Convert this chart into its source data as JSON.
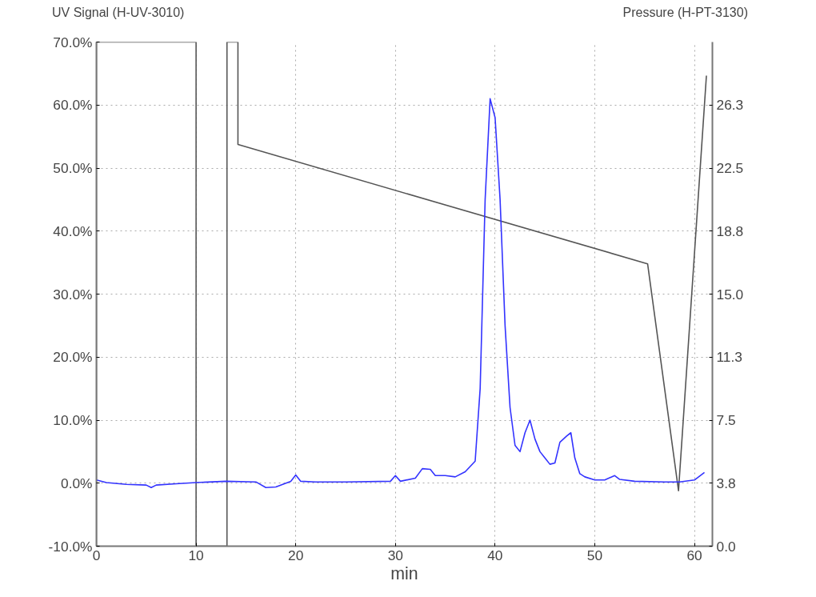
{
  "chart_data": {
    "type": "line",
    "xlabel": "min",
    "ylabel": "UV Signal (H-UV-3010)",
    "y2label": "Pressure (H-PT-3130)",
    "xlim": [
      0,
      61.8
    ],
    "xticks": [
      0,
      10,
      20,
      30,
      40,
      50,
      60
    ],
    "ylim": [
      -10,
      70
    ],
    "yticks": [
      {
        "value": -10,
        "label": "-10.0%"
      },
      {
        "value": 0,
        "label": "0.0%"
      },
      {
        "value": 10,
        "label": "10.0%"
      },
      {
        "value": 20,
        "label": "20.0%"
      },
      {
        "value": 30,
        "label": "30.0%"
      },
      {
        "value": 40,
        "label": "40.0%"
      },
      {
        "value": 50,
        "label": "50.0%"
      },
      {
        "value": 60,
        "label": "60.0%"
      },
      {
        "value": 70,
        "label": "70.0%"
      }
    ],
    "y2lim": [
      0,
      30
    ],
    "y2ticks": [
      {
        "value": 0,
        "label": "0.0"
      },
      {
        "value": 3.75,
        "label": "3.8"
      },
      {
        "value": 7.5,
        "label": "7.5"
      },
      {
        "value": 11.25,
        "label": "11.3"
      },
      {
        "value": 15,
        "label": "15.0"
      },
      {
        "value": 18.75,
        "label": "18.8"
      },
      {
        "value": 22.5,
        "label": "22.5"
      },
      {
        "value": 26.25,
        "label": "26.3"
      }
    ],
    "grid": true,
    "series": [
      {
        "color": "#555555",
        "axis": "y2",
        "x": [
          0,
          0,
          10,
          10,
          13.1,
          13.1,
          14.2,
          14.2,
          55.3,
          58.4,
          61.2
        ],
        "values": [
          0,
          30,
          30,
          0,
          0,
          30,
          30,
          23.9,
          16.8,
          3.3,
          28.0
        ]
      },
      {
        "color": "#3333ff",
        "axis": "y",
        "x": [
          0,
          1,
          3,
          5,
          5.5,
          6,
          8,
          10,
          13,
          16,
          17,
          18,
          19.5,
          20,
          20.5,
          22,
          25,
          29.5,
          30,
          30.5,
          32,
          32.7,
          33.5,
          34,
          35,
          36,
          37,
          38,
          38.5,
          39,
          39.5,
          40,
          40.5,
          41,
          41.5,
          42,
          42.5,
          43,
          43.5,
          44,
          44.5,
          45,
          45.5,
          46,
          46.5,
          47.2,
          47.6,
          48,
          48.5,
          49,
          50,
          51,
          52,
          52.5,
          54,
          57,
          58.5,
          60,
          61
        ],
        "values": [
          0.5,
          0.1,
          -0.2,
          -0.3,
          -0.7,
          -0.3,
          -0.1,
          0.1,
          0.3,
          0.2,
          -0.7,
          -0.6,
          0.3,
          1.3,
          0.3,
          0.2,
          0.2,
          0.3,
          1.2,
          0.3,
          0.8,
          2.3,
          2.2,
          1.2,
          1.2,
          1.0,
          1.8,
          3.5,
          15,
          45,
          61,
          58,
          45,
          25,
          12,
          6,
          5,
          8,
          10,
          7,
          5,
          4,
          3,
          3.2,
          6.5,
          7.5,
          8,
          4,
          1.5,
          1,
          0.5,
          0.5,
          1.2,
          0.6,
          0.3,
          0.2,
          0.2,
          0.5,
          1.7
        ]
      }
    ]
  }
}
